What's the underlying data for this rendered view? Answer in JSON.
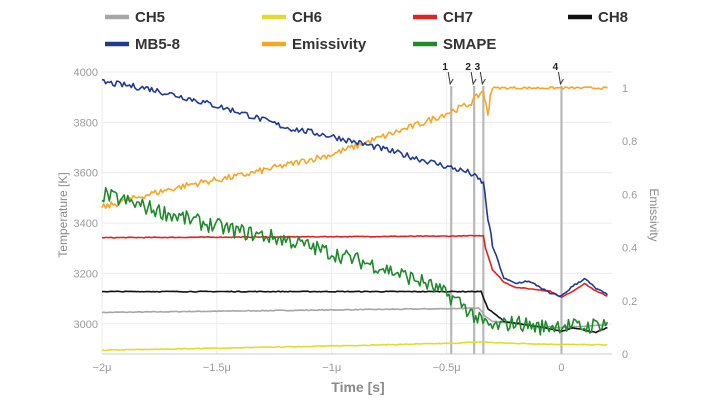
{
  "chart_data": {
    "type": "line",
    "title": "",
    "xlabel": "Time [s]",
    "ylabel": "Temperature [K]",
    "y2label": "Emissivity",
    "xlim": [
      -2.0,
      0.22
    ],
    "ylim": [
      2880,
      4000
    ],
    "y2lim": [
      0,
      1.06
    ],
    "x_unit": "µs",
    "x_ticks": [
      {
        "value": -2.0,
        "label": "−2μ"
      },
      {
        "value": -1.5,
        "label": "−1.5μ"
      },
      {
        "value": -1.0,
        "label": "−1μ"
      },
      {
        "value": -0.5,
        "label": "−0.5μ"
      },
      {
        "value": 0.0,
        "label": "0"
      }
    ],
    "y_ticks": [
      3000,
      3200,
      3400,
      3600,
      3800,
      4000
    ],
    "y2_ticks": [
      0,
      0.2,
      0.4,
      0.6,
      0.8,
      1
    ],
    "grid": true,
    "legend_position": "top",
    "legend_entries": [
      "CH5",
      "CH6",
      "CH7",
      "CH8",
      "MB5-8",
      "Emissivity",
      "SMAPE"
    ],
    "markers": [
      {
        "label": "1",
        "x": -0.48
      },
      {
        "label": "2",
        "x": -0.38
      },
      {
        "label": "3",
        "x": -0.34
      },
      {
        "label": "4",
        "x": 0.0
      }
    ],
    "series": [
      {
        "name": "CH5",
        "axis": "left",
        "color": "#a6a6a6",
        "x": [
          -2.0,
          -1.5,
          -1.0,
          -0.5,
          -0.36,
          -0.33,
          -0.3,
          -0.2,
          -0.1,
          0.0,
          0.1,
          0.2
        ],
        "values": [
          3045,
          3050,
          3055,
          3060,
          3062,
          3030,
          3010,
          3000,
          2990,
          2985,
          2990,
          2995
        ]
      },
      {
        "name": "CH6",
        "axis": "left",
        "color": "#e6d92e",
        "x": [
          -2.0,
          -1.5,
          -1.0,
          -0.5,
          -0.33,
          -0.3,
          -0.1,
          0.0,
          0.2
        ],
        "values": [
          2895,
          2903,
          2912,
          2922,
          2928,
          2925,
          2920,
          2918,
          2916
        ]
      },
      {
        "name": "CH7",
        "axis": "left",
        "color": "#e02222",
        "x": [
          -2.0,
          -1.5,
          -1.0,
          -0.5,
          -0.34,
          -0.33,
          -0.3,
          -0.25,
          -0.2,
          -0.15,
          -0.1,
          -0.05,
          0.0,
          0.05,
          0.1,
          0.15,
          0.2
        ],
        "values": [
          3342,
          3344,
          3346,
          3348,
          3350,
          3300,
          3215,
          3165,
          3145,
          3140,
          3135,
          3130,
          3105,
          3130,
          3160,
          3130,
          3110
        ]
      },
      {
        "name": "CH8",
        "axis": "left",
        "color": "#111111",
        "x": [
          -2.0,
          -1.5,
          -1.0,
          -0.5,
          -0.35,
          -0.32,
          -0.25,
          -0.15,
          -0.05,
          0.0,
          0.05,
          0.1,
          0.15,
          0.2
        ],
        "values": [
          3128,
          3128,
          3128,
          3128,
          3128,
          3060,
          3010,
          2995,
          2980,
          2970,
          2985,
          2975,
          2965,
          2985
        ]
      },
      {
        "name": "MB5-8",
        "axis": "left",
        "color": "#1f3a93",
        "x": [
          -2.0,
          -1.8,
          -1.6,
          -1.4,
          -1.2,
          -1.0,
          -0.8,
          -0.6,
          -0.4,
          -0.34,
          -0.32,
          -0.3,
          -0.25,
          -0.2,
          -0.15,
          -0.1,
          -0.05,
          0.0,
          0.05,
          0.1,
          0.15,
          0.2
        ],
        "values": [
          3960,
          3935,
          3890,
          3840,
          3780,
          3745,
          3700,
          3650,
          3600,
          3560,
          3420,
          3310,
          3180,
          3160,
          3170,
          3150,
          3120,
          3110,
          3150,
          3180,
          3140,
          3115
        ]
      },
      {
        "name": "Emissivity",
        "axis": "right",
        "color": "#f5a623",
        "x": [
          -2.0,
          -1.8,
          -1.6,
          -1.4,
          -1.2,
          -1.0,
          -0.8,
          -0.6,
          -0.4,
          -0.34,
          -0.33,
          -0.32,
          -0.31,
          -0.3,
          0.0,
          0.2
        ],
        "values": [
          0.55,
          0.6,
          0.64,
          0.67,
          0.71,
          0.75,
          0.81,
          0.87,
          0.94,
          0.99,
          0.94,
          0.9,
          0.97,
          1.0,
          1.0,
          1.0
        ]
      },
      {
        "name": "SMAPE",
        "axis": "right",
        "color": "#1e8a2b",
        "x": [
          -2.0,
          -1.8,
          -1.6,
          -1.4,
          -1.2,
          -1.0,
          -0.8,
          -0.6,
          -0.45,
          -0.35,
          -0.3,
          -0.2,
          -0.1,
          0.0,
          0.1,
          0.2
        ],
        "values": [
          0.6,
          0.55,
          0.5,
          0.46,
          0.43,
          0.38,
          0.33,
          0.27,
          0.2,
          0.12,
          0.1,
          0.12,
          0.1,
          0.11,
          0.1,
          0.12
        ]
      }
    ]
  }
}
